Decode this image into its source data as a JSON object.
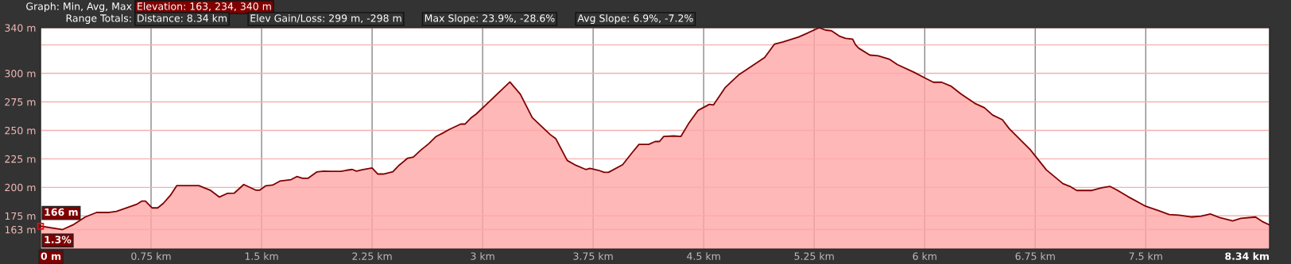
{
  "chart_data": {
    "type": "area",
    "annotations": [
      "Graph: Min, Avg, Max",
      "Elevation: 163, 234, 340 m",
      "Range Totals:",
      "Distance: 8.34 km",
      "Elev Gain/Loss: 299 m, -298 m",
      "Max Slope: 23.9%, -28.6%",
      "Avg Slope: 6.9%, -7.2%",
      {
        "text": "166 m",
        "x": 0,
        "y": 166
      },
      {
        "text": "1.3%",
        "x": 0,
        "y": 166
      }
    ],
    "series": [
      {
        "color": "#800000",
        "x": [
          0,
          0.15,
          0.226,
          0.303,
          0.38,
          0.467,
          0.515,
          0.573,
          0.65,
          0.689,
          0.712,
          0.756,
          0.795,
          0.833,
          0.881,
          0.924,
          1.074,
          1.151,
          1.213,
          1.267,
          1.315,
          1.379,
          1.46,
          1.488,
          1.527,
          1.575,
          1.624,
          1.7,
          1.739,
          1.778,
          1.816,
          1.874,
          1.922,
          1.97,
          2.038,
          2.076,
          2.115,
          2.144,
          2.182,
          2.25,
          2.289,
          2.327,
          2.391,
          2.433,
          2.491,
          2.53,
          2.577,
          2.635,
          2.684,
          2.732,
          2.774,
          2.851,
          2.88,
          2.919,
          2.957,
          3.054,
          3.185,
          3.256,
          3.337,
          3.458,
          3.497,
          3.574,
          3.632,
          3.7,
          3.728,
          3.786,
          3.825,
          3.854,
          3.95,
          4.017,
          4.061,
          4.127,
          4.171,
          4.2,
          4.229,
          4.297,
          4.345,
          4.397,
          4.461,
          4.538,
          4.567,
          4.645,
          4.741,
          4.914,
          4.981,
          5.039,
          5.145,
          5.284,
          5.328,
          5.367,
          5.425,
          5.463,
          5.511,
          5.531,
          5.553,
          5.628,
          5.684,
          5.759,
          5.815,
          5.927,
          6.003,
          6.059,
          6.115,
          6.181,
          6.246,
          6.34,
          6.405,
          6.461,
          6.527,
          6.574,
          6.714,
          6.751,
          6.826,
          6.938,
          6.985,
          7.032,
          7.135,
          7.2,
          7.256,
          7.303,
          7.378,
          7.5,
          7.594,
          7.659,
          7.725,
          7.809,
          7.875,
          7.94,
          8.006,
          8.09,
          8.146,
          8.245,
          8.296,
          8.34
        ],
        "values": [
          166,
          163,
          167.5,
          174,
          178,
          178,
          179,
          181.5,
          185,
          188,
          188,
          182,
          182,
          186,
          193,
          201.5,
          201.5,
          197.6,
          191.5,
          194.7,
          195,
          202.5,
          197.6,
          197.6,
          201.3,
          202,
          205.5,
          206.8,
          209.5,
          208,
          208,
          213.5,
          214.2,
          214,
          214,
          215,
          215.7,
          214.2,
          215.4,
          217,
          211.7,
          211.7,
          213.7,
          219.4,
          225.6,
          226.6,
          232.3,
          238.4,
          244.6,
          247.8,
          250.8,
          255.5,
          255.5,
          260.7,
          264.4,
          276.3,
          292.4,
          281.7,
          261.2,
          246.4,
          242.6,
          223.6,
          219.4,
          215.7,
          216.7,
          215,
          213.2,
          213.2,
          219.9,
          230.8,
          237.7,
          237.7,
          240.2,
          240.2,
          244.6,
          245.1,
          244.6,
          255.8,
          267.4,
          272.8,
          272.3,
          287.4,
          299,
          313.9,
          325.7,
          327.5,
          331.9,
          340,
          337.9,
          337.4,
          332.4,
          330.7,
          330,
          325,
          322,
          316,
          315.4,
          312.5,
          307.7,
          301,
          295.8,
          292.2,
          292.2,
          288.6,
          281.9,
          273.7,
          269.9,
          263.4,
          259.3,
          251.4,
          233.4,
          227.4,
          215.3,
          203.3,
          200.9,
          197.3,
          197.3,
          199.7,
          200.9,
          197.8,
          192,
          183.4,
          179.3,
          176.2,
          175.7,
          174,
          174.7,
          176.6,
          173.3,
          170.6,
          172.8,
          174,
          169.7,
          167
        ]
      }
    ],
    "xlim": [
      0,
      8.34
    ],
    "xticks": [
      {
        "value": 0,
        "label": "0 m"
      },
      {
        "value": 0.75,
        "label": "0.75 km"
      },
      {
        "value": 1.5,
        "label": "1.5 km"
      },
      {
        "value": 2.25,
        "label": "2.25 km"
      },
      {
        "value": 3,
        "label": "3 km"
      },
      {
        "value": 3.75,
        "label": "3.75 km"
      },
      {
        "value": 4.5,
        "label": "4.5 km"
      },
      {
        "value": 5.25,
        "label": "5.25 km"
      },
      {
        "value": 6,
        "label": "6 km"
      },
      {
        "value": 6.75,
        "label": "6.75 km"
      },
      {
        "value": 7.5,
        "label": "7.5 km"
      },
      {
        "value": 8.34,
        "label": "8.34 km"
      }
    ],
    "ylim": [
      146,
      340
    ],
    "yticks": [
      {
        "value": 163,
        "label": "163 m"
      },
      {
        "value": 175,
        "label": "175 m"
      },
      {
        "value": 200,
        "label": "200 m"
      },
      {
        "value": 225,
        "label": "225 m"
      },
      {
        "value": 250,
        "label": "250 m"
      },
      {
        "value": 275,
        "label": "275 m"
      },
      {
        "value": 300,
        "label": "300 m"
      },
      {
        "value": 325,
        "label": null
      },
      {
        "value": 340,
        "label": "340 m"
      }
    ],
    "grid": true
  }
}
